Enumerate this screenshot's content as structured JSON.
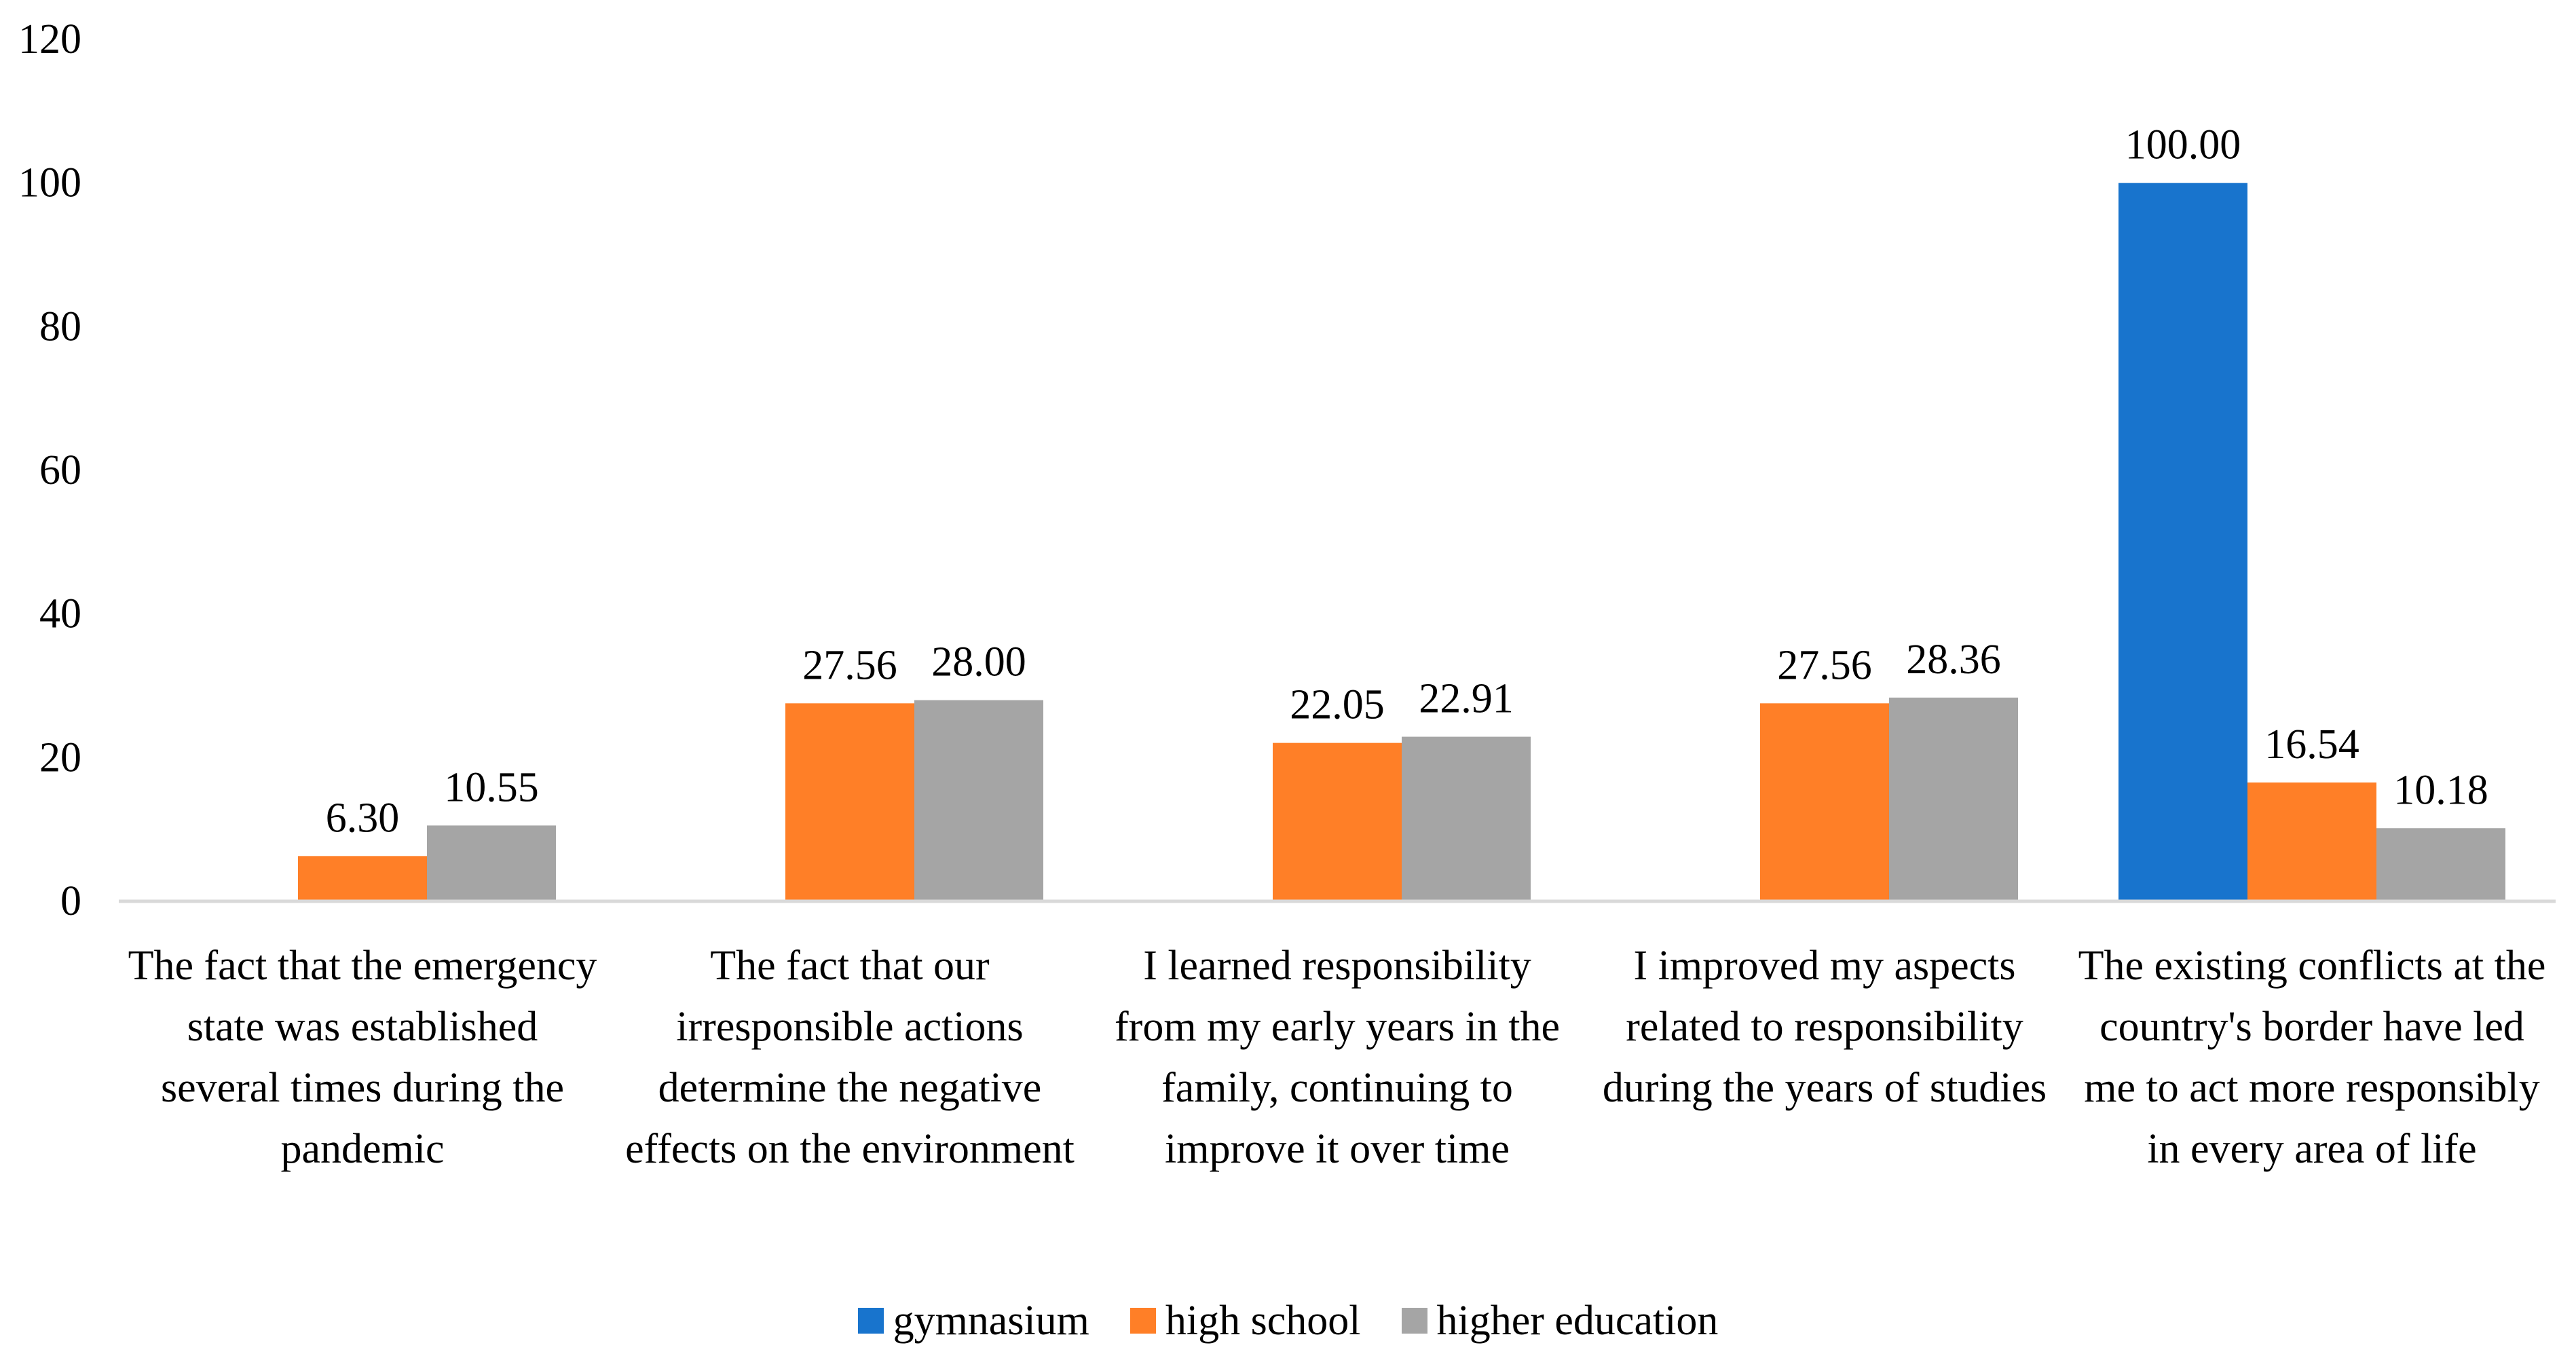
{
  "chart_data": {
    "type": "bar",
    "title": "",
    "xlabel": "",
    "ylabel": "",
    "ylim": [
      0,
      120
    ],
    "yticks": [
      0,
      20,
      40,
      60,
      80,
      100,
      120
    ],
    "ytick_labels": [
      "0",
      "20",
      "40",
      "60",
      "80",
      "100",
      "120"
    ],
    "grid": false,
    "legend_position": "bottom",
    "categories": [
      "The fact that the emergency state was established several times during the pandemic",
      "The fact that our irresponsible actions determine the negative effects on the environment",
      "I learned responsibility from my early years in the family, continuing to improve it over time",
      "I improved my aspects related to responsibility during the years of studies",
      "The existing conflicts at the country's border have led me to act more responsibly in every area of life"
    ],
    "series": [
      {
        "name": "gymnasium",
        "color": "#1874CD",
        "values": [
          null,
          null,
          null,
          null,
          100.0
        ],
        "labels": [
          "",
          "",
          "",
          "",
          "100.00"
        ]
      },
      {
        "name": "high school",
        "color": "#FF7F27",
        "values": [
          6.3,
          27.56,
          22.05,
          27.56,
          16.54
        ],
        "labels": [
          "6.30",
          "27.56",
          "22.05",
          "27.56",
          "16.54"
        ]
      },
      {
        "name": "higher education",
        "color": "#A5A5A5",
        "values": [
          10.55,
          28.0,
          22.91,
          28.36,
          10.18
        ],
        "labels": [
          "10.55",
          "28.00",
          "22.91",
          "28.36",
          "10.18"
        ]
      }
    ]
  },
  "legend": {
    "items": [
      {
        "label": "gymnasium",
        "color": "#1874CD"
      },
      {
        "label": "high school",
        "color": "#FF7F27"
      },
      {
        "label": "higher education",
        "color": "#A5A5A5"
      }
    ]
  }
}
